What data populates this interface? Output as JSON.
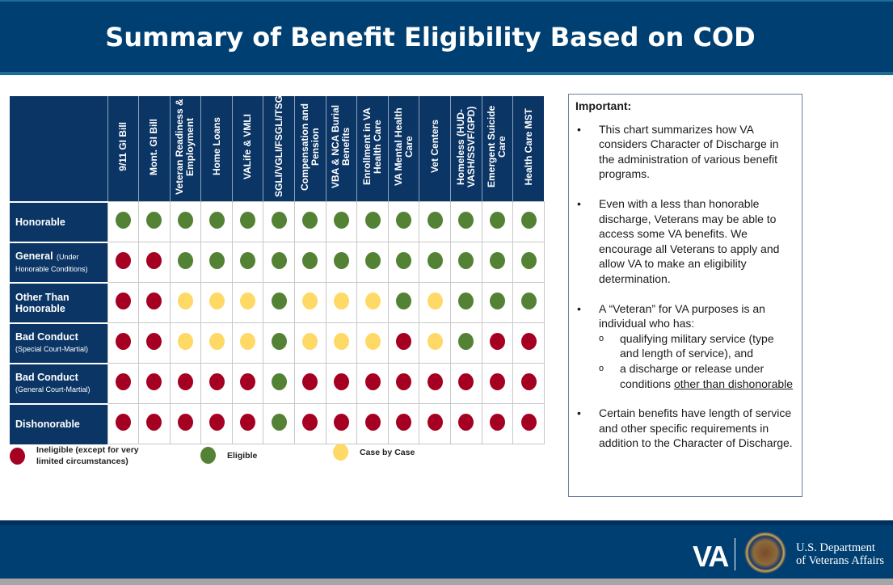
{
  "title": "Summary of Benefit Eligibility Based on COD",
  "colors": {
    "ineligible": "#a50021",
    "eligible": "#548235",
    "case_by_case": "#ffd966",
    "navy": "#0b3565"
  },
  "columns": [
    "9/11 GI Bill",
    "Mont. GI Bill",
    "Veteran Readiness & Employment",
    "Home Loans",
    "VALife & VMLI",
    "SGLI/VGLI/FSGLI/TSGLI",
    "Compensation and Pension",
    "VBA & NCA Burial Benefits",
    "Enrollment in VA Health Care",
    "VA Mental Health Care",
    "Vet Centers",
    "Homeless (HUD-VASH/SSVF/GPD)",
    "Emergent Suicide Care",
    "Health Care MST"
  ],
  "rows": [
    {
      "label": "Honorable",
      "sub": "",
      "values": [
        "eligible",
        "eligible",
        "eligible",
        "eligible",
        "eligible",
        "eligible",
        "eligible",
        "eligible",
        "eligible",
        "eligible",
        "eligible",
        "eligible",
        "eligible",
        "eligible"
      ]
    },
    {
      "label": "General",
      "sub": "(Under Honorable Conditions)",
      "values": [
        "ineligible",
        "ineligible",
        "eligible",
        "eligible",
        "eligible",
        "eligible",
        "eligible",
        "eligible",
        "eligible",
        "eligible",
        "eligible",
        "eligible",
        "eligible",
        "eligible"
      ]
    },
    {
      "label": "Other Than Honorable",
      "sub": "",
      "values": [
        "ineligible",
        "ineligible",
        "case_by_case",
        "case_by_case",
        "case_by_case",
        "eligible",
        "case_by_case",
        "case_by_case",
        "case_by_case",
        "eligible",
        "case_by_case",
        "eligible",
        "eligible",
        "eligible"
      ]
    },
    {
      "label": "Bad Conduct",
      "sub": "(Special Court-Martial)",
      "values": [
        "ineligible",
        "ineligible",
        "case_by_case",
        "case_by_case",
        "case_by_case",
        "eligible",
        "case_by_case",
        "case_by_case",
        "case_by_case",
        "ineligible",
        "case_by_case",
        "eligible",
        "ineligible",
        "ineligible"
      ]
    },
    {
      "label": "Bad Conduct",
      "sub": "(General Court-Martial)",
      "values": [
        "ineligible",
        "ineligible",
        "ineligible",
        "ineligible",
        "ineligible",
        "eligible",
        "ineligible",
        "ineligible",
        "ineligible",
        "ineligible",
        "ineligible",
        "ineligible",
        "ineligible",
        "ineligible"
      ]
    },
    {
      "label": "Dishonorable",
      "sub": "",
      "values": [
        "ineligible",
        "ineligible",
        "ineligible",
        "ineligible",
        "ineligible",
        "eligible",
        "ineligible",
        "ineligible",
        "ineligible",
        "ineligible",
        "ineligible",
        "ineligible",
        "ineligible",
        "ineligible"
      ]
    }
  ],
  "legend": {
    "ineligible": "Ineligible (except for very limited circumstances)",
    "eligible": "Eligible",
    "case_by_case": "Case by Case"
  },
  "important": {
    "heading": "Important:",
    "bullet1": "This chart summarizes how VA considers Character of Discharge in the administration of various benefit programs.",
    "bullet2": "Even with a less than honorable discharge, Veterans may be able to access some VA benefits. We encourage all Veterans to apply and allow VA to make an eligibility determination.",
    "bullet3": "A “Veteran” for VA purposes is an individual who has:",
    "sub1": "qualifying military service (type and length of service), and",
    "sub2_pre": "a discharge or release under conditions ",
    "sub2_link": "other than dishonorable",
    "bullet4": "Certain benefits have length of service and other specific requirements in addition to the Character of Discharge."
  },
  "footer": {
    "va": "VA",
    "dept_line1": "U.S. Department",
    "dept_line2": "of Veterans Affairs"
  }
}
